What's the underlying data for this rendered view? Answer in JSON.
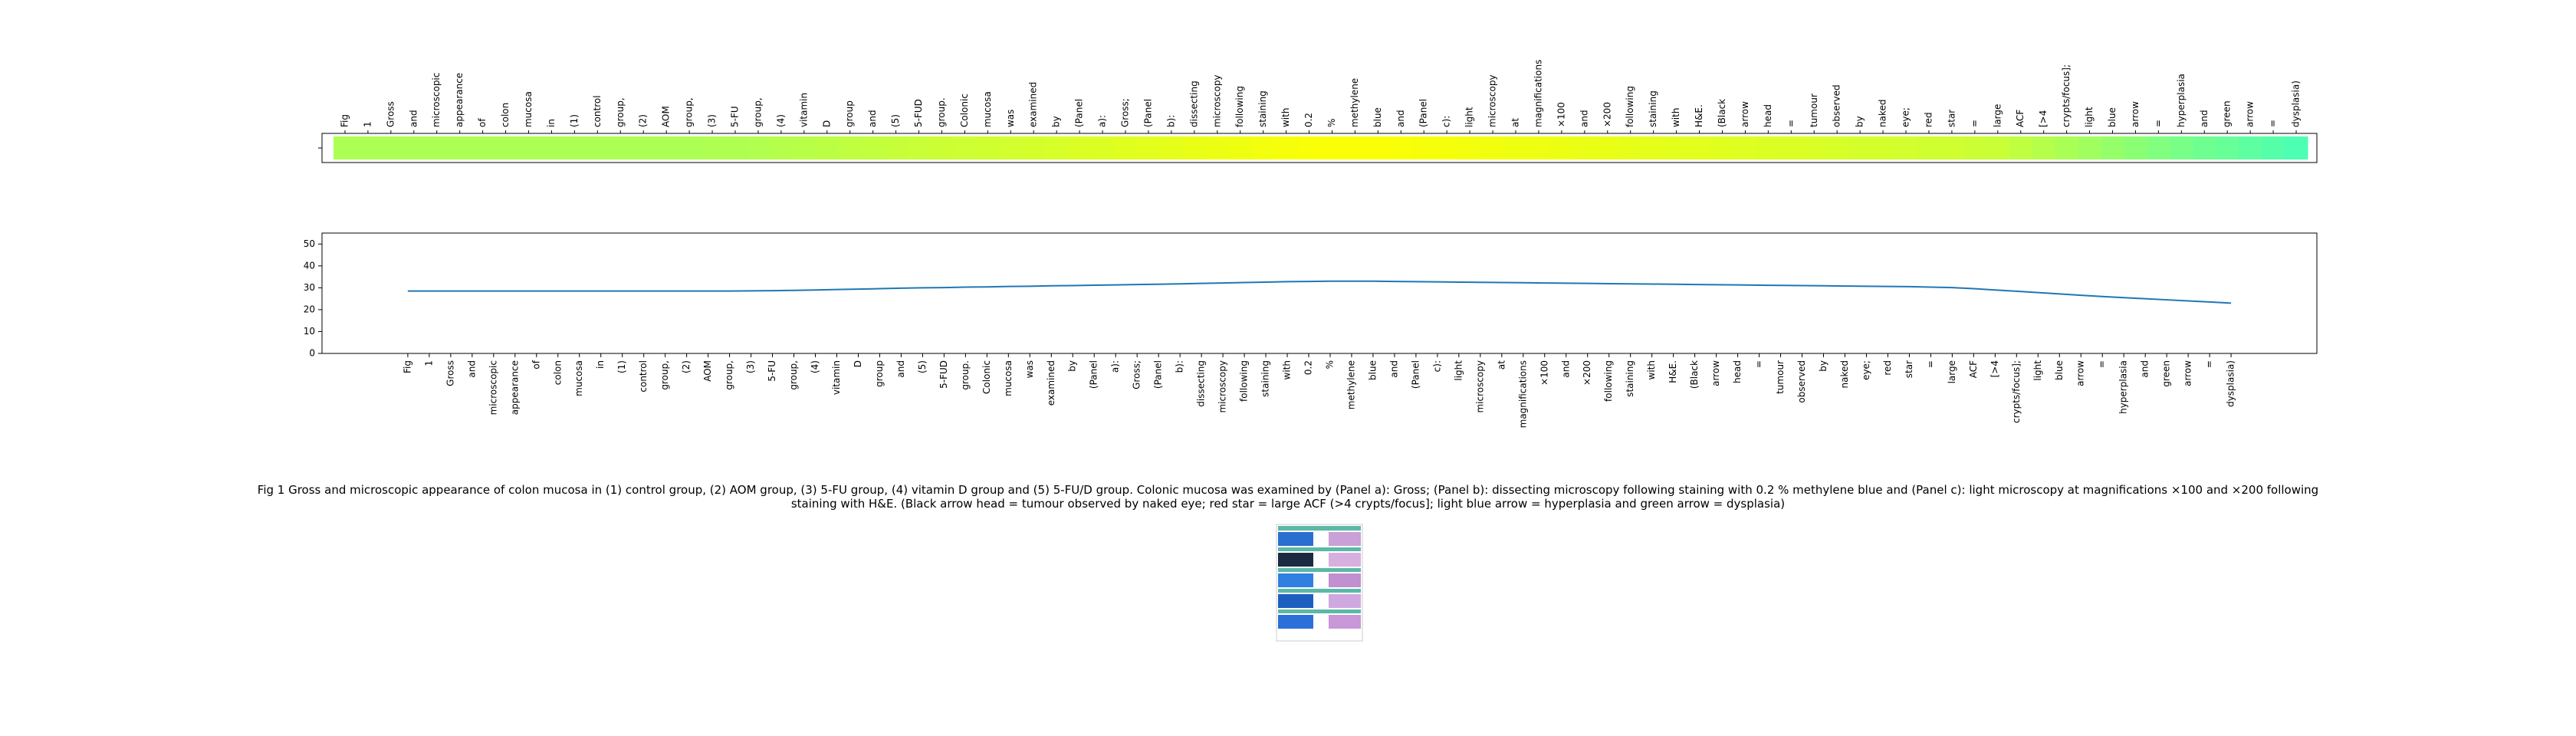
{
  "chart_data": [
    {
      "type": "heatmap",
      "categories": [
        "Fig",
        "1",
        "Gross",
        "and",
        "microscopic",
        "appearance",
        "of",
        "colon",
        "mucosa",
        "in",
        "(1)",
        "control",
        "group,",
        "(2)",
        "AOM",
        "group,",
        "(3)",
        "5-FU",
        "group,",
        "(4)",
        "vitamin",
        "D",
        "group",
        "and",
        "(5)",
        "5-FUD",
        "group.",
        "Colonic",
        "mucosa",
        "was",
        "examined",
        "by",
        "(Panel",
        "a):",
        "Gross;",
        "(Panel",
        "b):",
        "dissecting",
        "microscopy",
        "following",
        "staining",
        "with",
        "0.2",
        "%",
        "methylene",
        "blue",
        "and",
        "(Panel",
        "c):",
        "light",
        "microscopy",
        "at",
        "magnifications",
        "×100",
        "and",
        "×200",
        "following",
        "staining",
        "with",
        "H&E.",
        "(Black",
        "arrow",
        "head",
        "=",
        "tumour",
        "observed",
        "by",
        "naked",
        "eye;",
        "red",
        "star",
        "=",
        "large",
        "ACF",
        "[>4",
        "crypts/focus];",
        "light",
        "blue",
        "arrow",
        "=",
        "hyperplasia",
        "and",
        "green",
        "arrow",
        "=",
        "dysplasia)"
      ],
      "values": [
        28.5,
        28.5,
        28.5,
        28.5,
        28.5,
        28.5,
        28.5,
        28.5,
        28.5,
        28.5,
        28.5,
        28.5,
        28.5,
        28.5,
        28.5,
        28.5,
        28.6,
        28.7,
        28.8,
        29.0,
        29.2,
        29.4,
        29.6,
        29.8,
        30.0,
        30.1,
        30.3,
        30.4,
        30.6,
        30.7,
        30.9,
        31.0,
        31.2,
        31.3,
        31.5,
        31.6,
        31.8,
        32.0,
        32.2,
        32.4,
        32.6,
        32.8,
        32.9,
        33.0,
        33.0,
        33.0,
        32.9,
        32.8,
        32.7,
        32.6,
        32.5,
        32.4,
        32.3,
        32.2,
        32.1,
        32.0,
        31.9,
        31.8,
        31.7,
        31.6,
        31.5,
        31.4,
        31.3,
        31.2,
        31.1,
        31.0,
        30.9,
        30.8,
        30.7,
        30.6,
        30.5,
        30.3,
        30.1,
        29.6,
        29.0,
        28.4,
        27.8,
        27.2,
        26.6,
        26.0,
        25.5,
        25.0,
        24.5,
        24.0,
        23.5,
        23.0
      ]
    },
    {
      "type": "line",
      "categories": [
        "Fig",
        "1",
        "Gross",
        "and",
        "microscopic",
        "appearance",
        "of",
        "colon",
        "mucosa",
        "in",
        "(1)",
        "control",
        "group,",
        "(2)",
        "AOM",
        "group,",
        "(3)",
        "5-FU",
        "group,",
        "(4)",
        "vitamin",
        "D",
        "group",
        "and",
        "(5)",
        "5-FUD",
        "group.",
        "Colonic",
        "mucosa",
        "was",
        "examined",
        "by",
        "(Panel",
        "a):",
        "Gross;",
        "(Panel",
        "b):",
        "dissecting",
        "microscopy",
        "following",
        "staining",
        "with",
        "0.2",
        "%",
        "methylene",
        "blue",
        "and",
        "(Panel",
        "c):",
        "light",
        "microscopy",
        "at",
        "magnifications",
        "×100",
        "and",
        "×200",
        "following",
        "staining",
        "with",
        "H&E.",
        "(Black",
        "arrow",
        "head",
        "=",
        "tumour",
        "observed",
        "by",
        "naked",
        "eye;",
        "red",
        "star",
        "=",
        "large",
        "ACF",
        "[>4",
        "crypts/focus];",
        "light",
        "blue",
        "arrow",
        "=",
        "hyperplasia",
        "and",
        "green",
        "arrow",
        "=",
        "dysplasia)"
      ],
      "values": [
        28.5,
        28.5,
        28.5,
        28.5,
        28.5,
        28.5,
        28.5,
        28.5,
        28.5,
        28.5,
        28.5,
        28.5,
        28.5,
        28.5,
        28.5,
        28.5,
        28.6,
        28.7,
        28.8,
        29.0,
        29.2,
        29.4,
        29.6,
        29.8,
        30.0,
        30.1,
        30.3,
        30.4,
        30.6,
        30.7,
        30.9,
        31.0,
        31.2,
        31.3,
        31.5,
        31.6,
        31.8,
        32.0,
        32.2,
        32.4,
        32.6,
        32.8,
        32.9,
        33.0,
        33.0,
        33.0,
        32.9,
        32.8,
        32.7,
        32.6,
        32.5,
        32.4,
        32.3,
        32.2,
        32.1,
        32.0,
        31.9,
        31.8,
        31.7,
        31.6,
        31.5,
        31.4,
        31.3,
        31.2,
        31.1,
        31.0,
        30.9,
        30.8,
        30.7,
        30.6,
        30.5,
        30.3,
        30.1,
        29.6,
        29.0,
        28.4,
        27.8,
        27.2,
        26.6,
        26.0,
        25.5,
        25.0,
        24.5,
        24.0,
        23.5,
        23.0
      ],
      "color": "#1f77b4",
      "xlim": [
        -4,
        89
      ],
      "ylim": [
        0,
        55
      ],
      "yticks": [
        0,
        10,
        20,
        30,
        40,
        50
      ]
    }
  ],
  "caption": "Fig 1 Gross and microscopic appearance of colon mucosa in (1) control group, (2) AOM group, (3) 5-FU group, (4) vitamin D group and (5) 5-FU/D group. Colonic mucosa was examined by (Panel a): Gross; (Panel b): dissecting microscopy following staining with 0.2 % methylene blue and (Panel c): light microscopy at magnifications ×100 and ×200 following staining with H&E. (Black arrow head = tumour observed by naked eye; red star = large ACF (>4 crypts/focus]; light blue arrow = hyperplasia and green arrow = dysplasia)"
}
